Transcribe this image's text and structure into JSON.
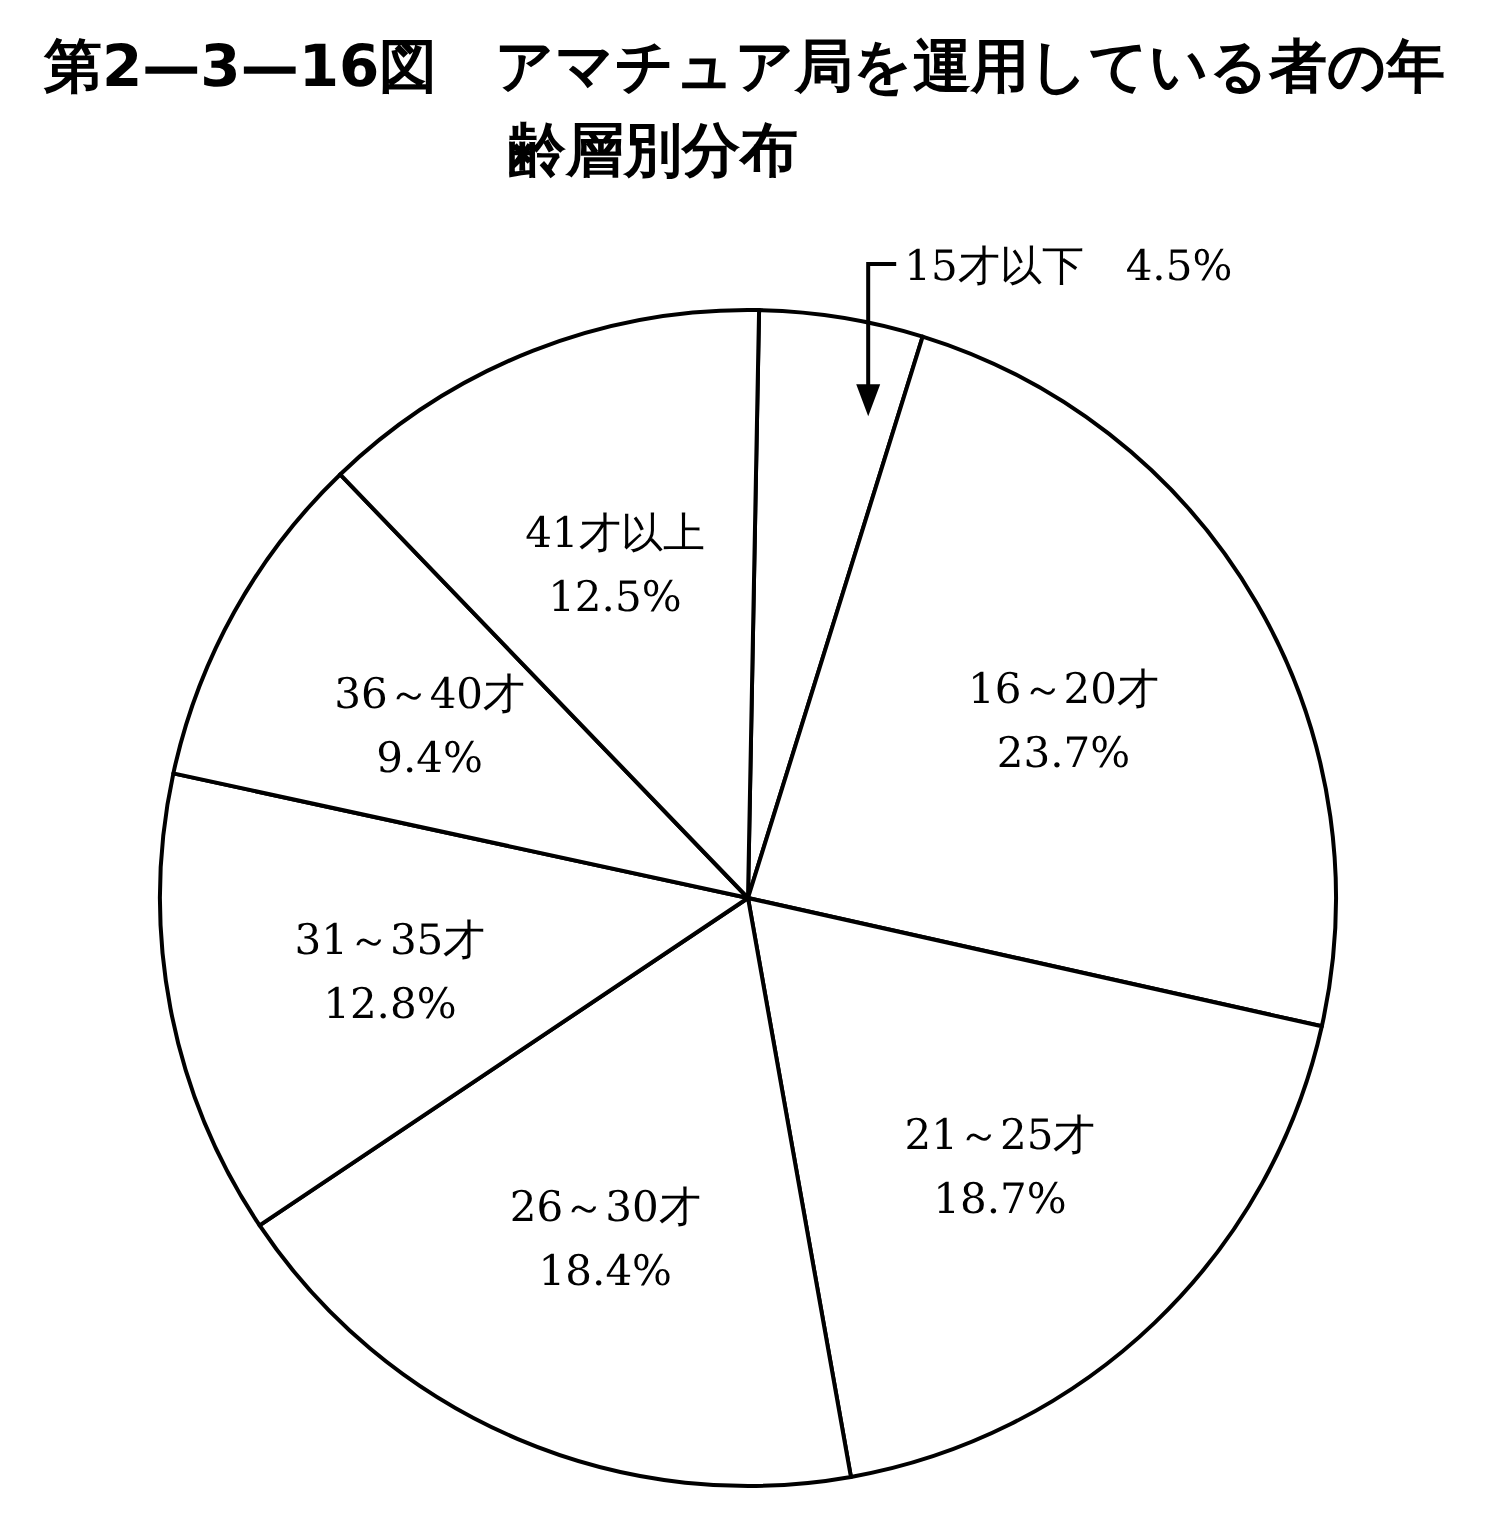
{
  "chart_data": {
    "type": "pie",
    "title": "第2—3—16図　アマチュア局を運用している者の年齢層別分布",
    "categories": [
      "15才以下",
      "16～20才",
      "21～25才",
      "26～30才",
      "31～35才",
      "36～40才",
      "41才以上"
    ],
    "values": [
      4.5,
      23.7,
      18.7,
      18.4,
      12.8,
      9.4,
      12.5
    ],
    "value_labels": [
      "4.5%",
      "23.7%",
      "18.7%",
      "18.4%",
      "12.8%",
      "9.4%",
      "12.5%"
    ],
    "colors": [
      "#ffffff",
      "#ffffff",
      "#ffffff",
      "#ffffff",
      "#ffffff",
      "#ffffff",
      "#ffffff"
    ]
  }
}
